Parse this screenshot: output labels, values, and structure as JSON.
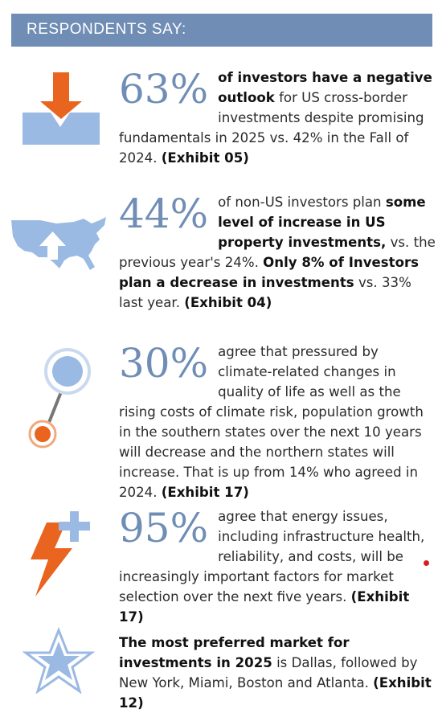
{
  "header": {
    "title": "RESPONDENTS SAY:"
  },
  "items": [
    {
      "icon": "down-arrow-into-box-icon",
      "stat": "63%",
      "t1": "of investors have a negative outlook",
      "t2": " for US cross-border investments despite promising fundamentals in 2025 vs. 42% in the Fall of 2024. ",
      "t3": "(Exhibit 05)"
    },
    {
      "icon": "us-map-up-arrow-icon",
      "stat": "44%",
      "t1": "of non-US investors plan ",
      "t2": "some level of increase in US property investments,",
      "t3": " vs. the previous year's 24%. ",
      "t4": "Only 8% of Investors plan a decrease in investments",
      "t5": " vs. 33% last year. ",
      "t6": "(Exhibit 04)"
    },
    {
      "icon": "thermometer-gauge-icon",
      "stat": "30%",
      "t1": "agree that pressured by climate-related changes in quality of life as well as the rising costs of climate risk, population growth in the southern states over the next 10 years will decrease and the northern states will increase. That is up from 14% who agreed in 2024. ",
      "t2": "(Exhibit 17)"
    },
    {
      "icon": "lightning-plus-icon",
      "stat": "95%",
      "t1": "agree that energy issues, including infrastructure health, reliability, and costs, will be increasingly important factors for market selection over the next five years. ",
      "t2": "(Exhibit 17)"
    },
    {
      "icon": "star-icon",
      "t1": "The most preferred market for investments in 2025",
      "t2": " is Dallas, followed by New York, Miami, Boston and Atlanta. ",
      "t3": "(Exhibit 12)"
    }
  ],
  "colors": {
    "blue": "#6f8db5",
    "light_blue": "#9ab9e3",
    "orange": "#e9641f"
  }
}
